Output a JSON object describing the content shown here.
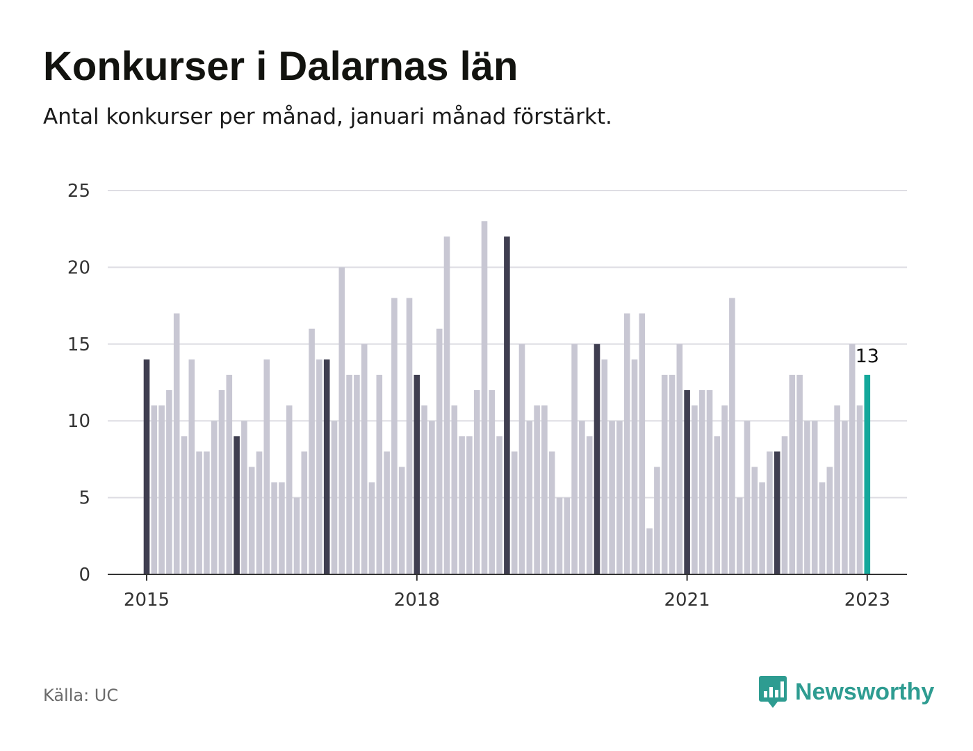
{
  "header": {
    "title": "Konkurser i Dalarnas län",
    "subtitle": "Antal konkurser per månad, januari månad förstärkt."
  },
  "footer": {
    "source": "Källa: UC",
    "brand": "Newsworthy",
    "brand_icon": "newsworthy-logo-icon"
  },
  "colors": {
    "bar": "#c8c7d3",
    "january": "#3f3e50",
    "latest": "#14a89b",
    "grid": "#dedde3",
    "axis": "#333333",
    "brand": "#2e9c91"
  },
  "chart_data": {
    "type": "bar",
    "title": "Konkurser i Dalarnas län",
    "subtitle": "Antal konkurser per månad, januari månad förstärkt.",
    "xlabel": "",
    "ylabel": "",
    "ylim": [
      0,
      25
    ],
    "yticks": [
      0,
      5,
      10,
      15,
      20,
      25
    ],
    "xtick_labels": [
      "2015",
      "2018",
      "2021",
      "2023"
    ],
    "grid": true,
    "start": "2015-01",
    "end": "2023-01",
    "highlight": "januari",
    "series": [
      {
        "values": [
          14,
          11,
          11,
          12,
          17,
          9,
          14,
          8,
          8,
          10,
          12,
          13,
          9,
          10,
          7,
          8,
          14,
          6,
          6,
          11,
          5,
          8,
          16,
          14,
          14,
          10,
          20,
          13,
          13,
          15,
          6,
          13,
          8,
          18,
          7,
          18,
          13,
          11,
          10,
          16,
          22,
          11,
          9,
          9,
          12,
          23,
          12,
          9,
          22,
          8,
          15,
          10,
          11,
          11,
          8,
          5,
          5,
          15,
          10,
          9,
          15,
          14,
          10,
          10,
          17,
          14,
          17,
          3,
          7,
          13,
          13,
          15,
          12,
          11,
          12,
          12,
          9,
          11,
          18,
          5,
          10,
          7,
          6,
          8,
          8,
          9,
          13,
          13,
          10,
          10,
          6,
          7,
          11,
          10,
          15,
          11,
          13
        ]
      }
    ],
    "annotations": [
      {
        "date": "2023-01",
        "value": 13,
        "label": "13"
      }
    ]
  }
}
